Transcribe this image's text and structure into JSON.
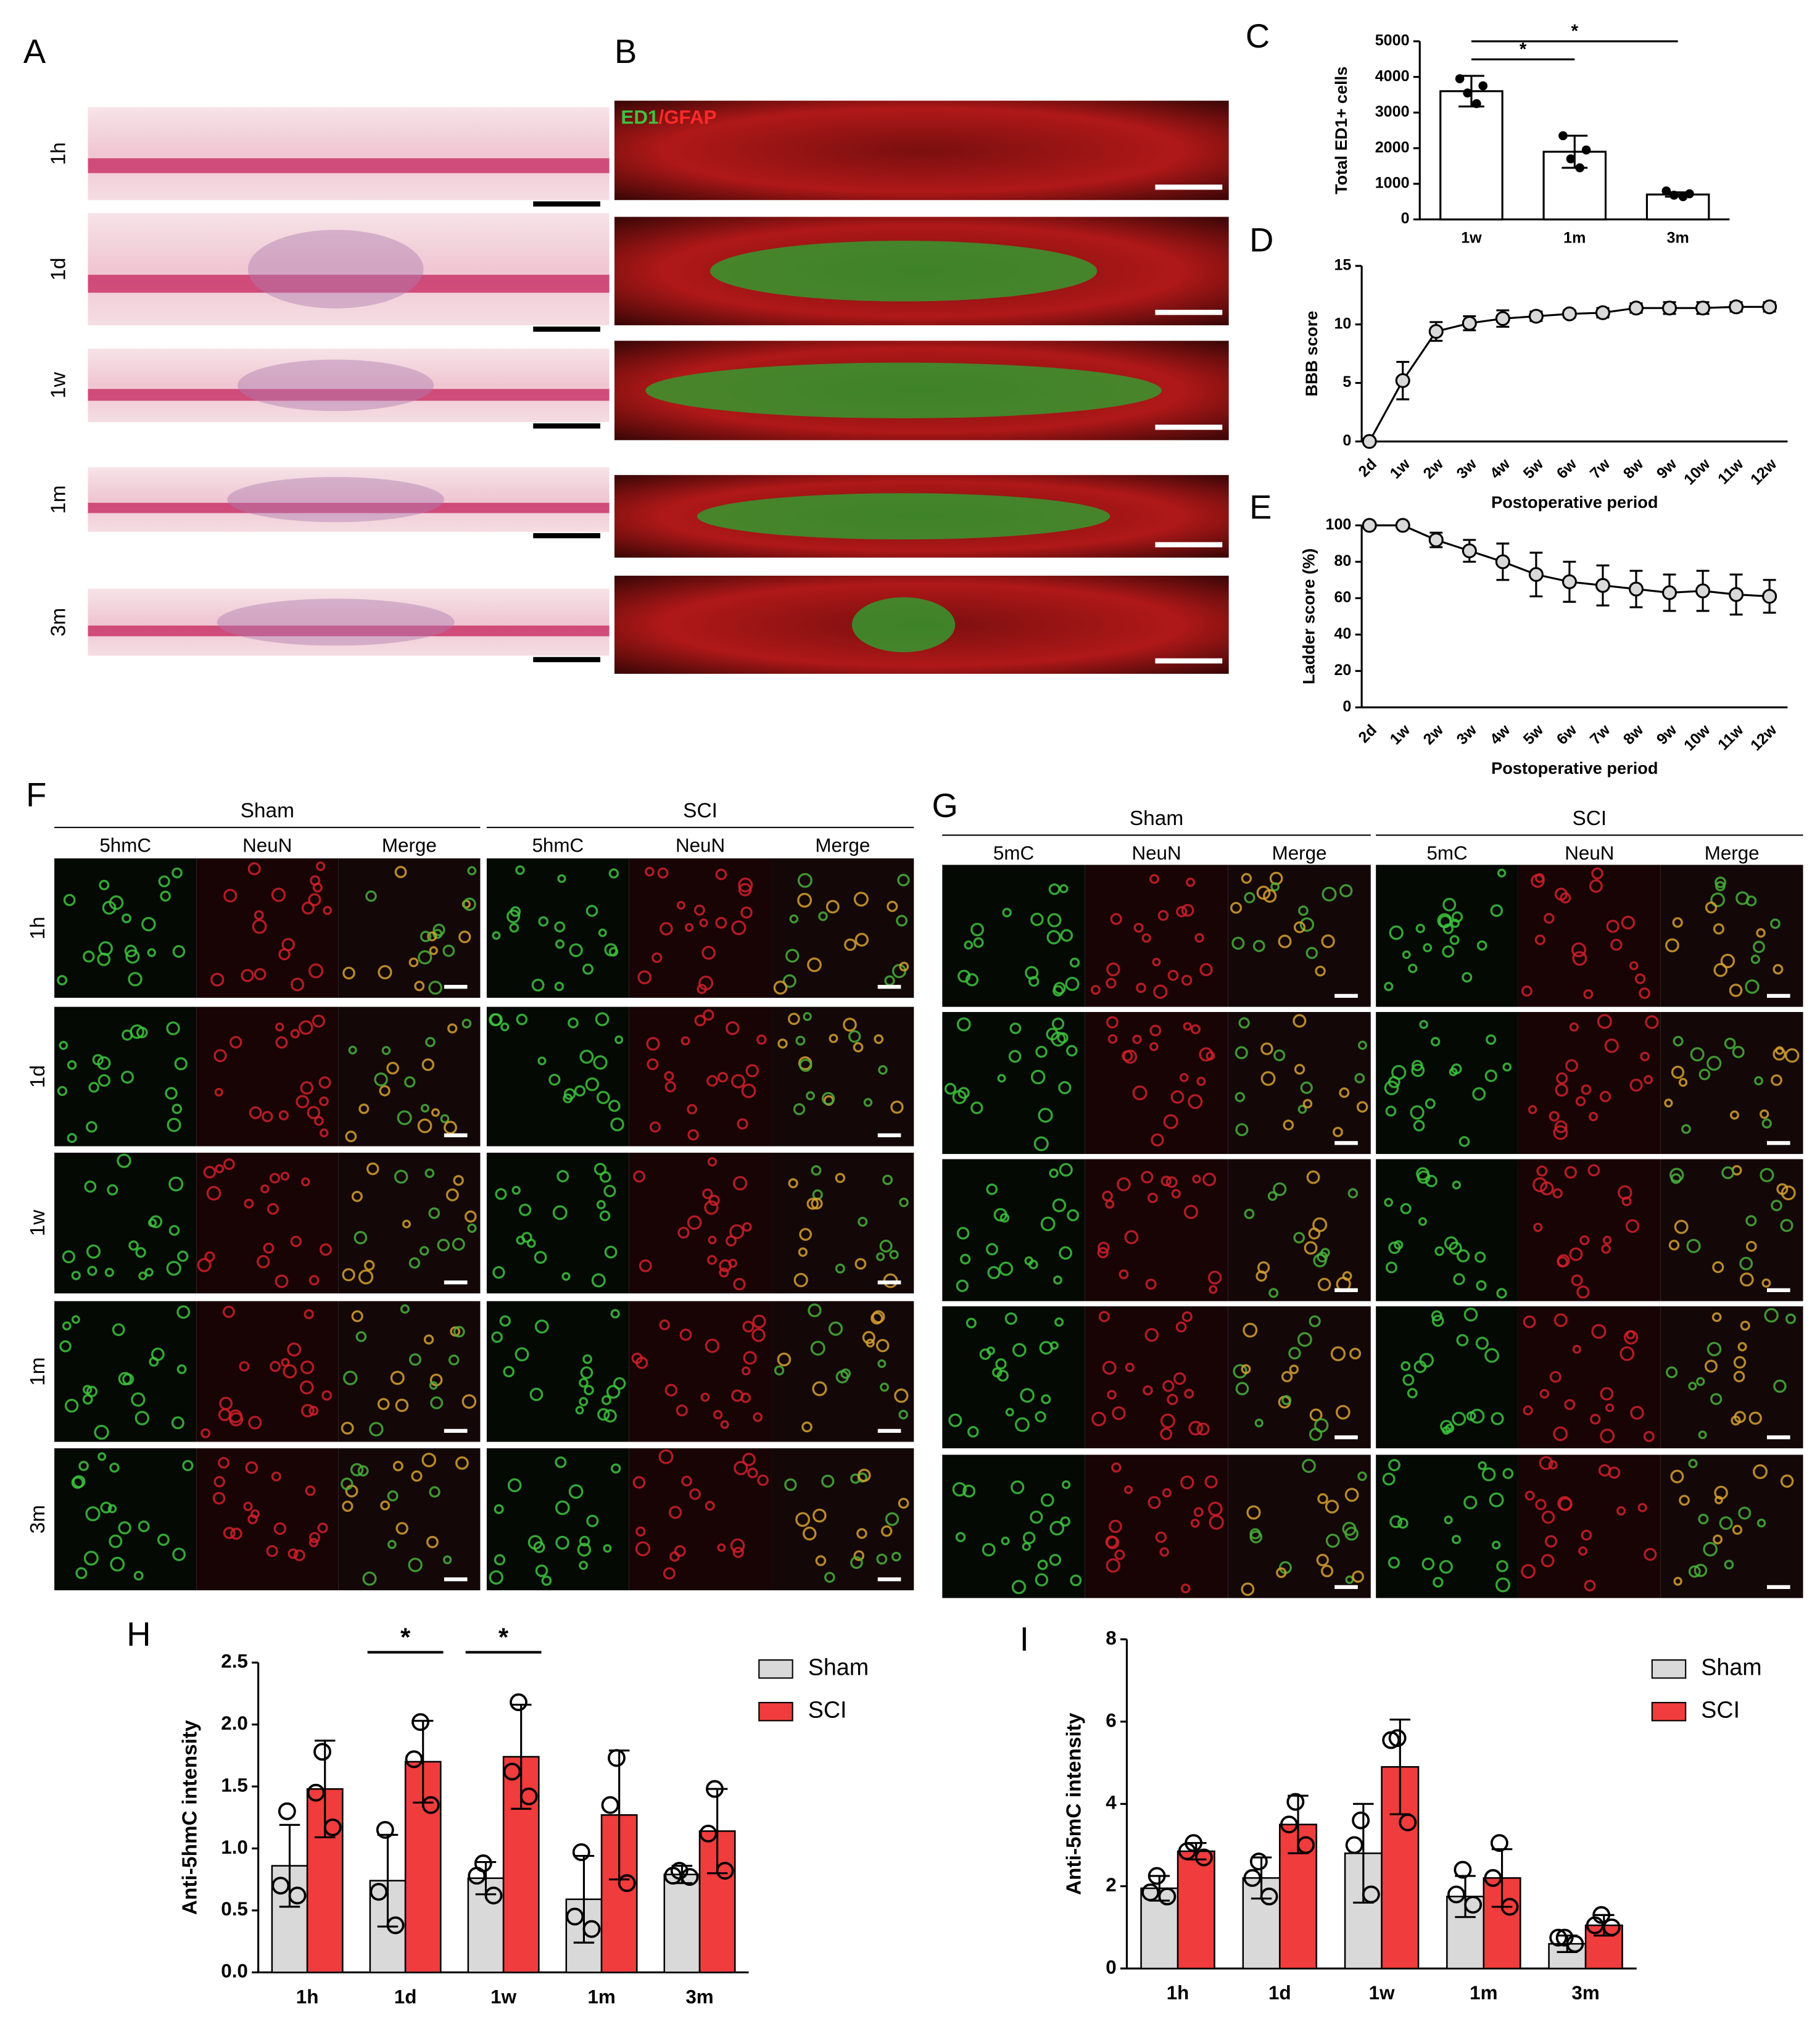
{
  "panels": {
    "A": {
      "letter": "A",
      "rows": [
        "1h",
        "1d",
        "1w",
        "1m",
        "3m"
      ]
    },
    "B": {
      "letter": "B",
      "stain_green": "ED1",
      "stain_red": "/GFAP"
    },
    "F": {
      "letter": "F",
      "groups": [
        "Sham",
        "SCI"
      ],
      "columns": [
        "5hmC",
        "NeuN",
        "Merge"
      ],
      "rows": [
        "1h",
        "1d",
        "1w",
        "1m",
        "3m"
      ]
    },
    "G": {
      "letter": "G",
      "groups": [
        "Sham",
        "SCI"
      ],
      "columns": [
        "5mC",
        "NeuN",
        "Merge"
      ]
    }
  },
  "chart_data": [
    {
      "type": "bar",
      "panel_label": "C",
      "ylabel": "Total ED1+ cells",
      "categories": [
        "1w",
        "1m",
        "3m"
      ],
      "values": [
        3600,
        1900,
        700
      ],
      "errors": [
        430,
        450,
        60
      ],
      "points": [
        [
          3950,
          3750,
          3550,
          3250
        ],
        [
          2350,
          1950,
          1700,
          1450
        ],
        [
          800,
          720,
          680,
          640
        ]
      ],
      "color": "#ffffff",
      "ylim": [
        0,
        5000
      ],
      "yticks": [
        0,
        1000,
        2000,
        3000,
        4000,
        5000
      ],
      "significance": [
        {
          "pair": [
            0,
            1
          ],
          "label": "*"
        },
        {
          "pair": [
            0,
            2
          ],
          "label": "*"
        }
      ]
    },
    {
      "type": "line",
      "panel_label": "D",
      "ylabel": "BBB score",
      "xlabel": "Postoperative period",
      "categories": [
        "2d",
        "1w",
        "2w",
        "3w",
        "4w",
        "5w",
        "6w",
        "7w",
        "8w",
        "9w",
        "10w",
        "11w",
        "12w"
      ],
      "values": [
        0,
        5.2,
        9.4,
        10.1,
        10.5,
        10.7,
        10.9,
        11.0,
        11.4,
        11.4,
        11.4,
        11.5,
        11.5
      ],
      "errors": [
        0,
        1.6,
        0.8,
        0.6,
        0.7,
        0.4,
        0.3,
        0.4,
        0.4,
        0.5,
        0.5,
        0.4,
        0.4
      ],
      "color": "#d9d9d9",
      "ylim": [
        0,
        15
      ],
      "yticks": [
        0,
        5,
        10,
        15
      ]
    },
    {
      "type": "line",
      "panel_label": "E",
      "ylabel": "Ladder score (%)",
      "xlabel": "Postoperative period",
      "categories": [
        "2d",
        "1w",
        "2w",
        "3w",
        "4w",
        "5w",
        "6w",
        "7w",
        "8w",
        "9w",
        "10w",
        "11w",
        "12w"
      ],
      "values": [
        100,
        100,
        92,
        86,
        80,
        73,
        69,
        67,
        65,
        63,
        64,
        62,
        61
      ],
      "errors": [
        0,
        0,
        4,
        6,
        10,
        12,
        11,
        11,
        10,
        10,
        11,
        11,
        9
      ],
      "color": "#d9d9d9",
      "ylim": [
        0,
        100
      ],
      "yticks": [
        0,
        20,
        40,
        60,
        80,
        100
      ]
    },
    {
      "type": "grouped_bar",
      "panel_label": "H",
      "ylabel": "Anti-5hmC intensity",
      "categories": [
        "1h",
        "1d",
        "1w",
        "1m",
        "3m"
      ],
      "series": [
        {
          "name": "Sham",
          "color": "#d9d9d9",
          "values": [
            0.86,
            0.74,
            0.76,
            0.59,
            0.79
          ],
          "errors": [
            0.33,
            0.37,
            0.13,
            0.35,
            0.07
          ],
          "points": [
            [
              1.3,
              0.7,
              0.62
            ],
            [
              1.15,
              0.65,
              0.38
            ],
            [
              0.88,
              0.78,
              0.62
            ],
            [
              0.97,
              0.45,
              0.35
            ],
            [
              0.82,
              0.78,
              0.77
            ]
          ]
        },
        {
          "name": "SCI",
          "color": "#f03c3c",
          "values": [
            1.48,
            1.7,
            1.74,
            1.27,
            1.14
          ],
          "errors": [
            0.39,
            0.33,
            0.42,
            0.52,
            0.34
          ],
          "points": [
            [
              1.78,
              1.45,
              1.17
            ],
            [
              2.02,
              1.72,
              1.35
            ],
            [
              2.18,
              1.62,
              1.42
            ],
            [
              1.73,
              1.35,
              0.72
            ],
            [
              1.48,
              1.12,
              0.82
            ]
          ]
        }
      ],
      "ylim": [
        0,
        2.5
      ],
      "yticks": [
        {
          "value": 0,
          "label": "0.0"
        },
        0.5,
        {
          "value": 1,
          "label": "1.0"
        },
        1.5,
        {
          "value": 2,
          "label": "2.0"
        },
        2.5
      ],
      "legend": "right",
      "significance": [
        {
          "category": 1,
          "label": "*"
        },
        {
          "category": 2,
          "label": "*"
        }
      ]
    },
    {
      "type": "grouped_bar",
      "panel_label": "I",
      "ylabel": "Anti-5mC intensity",
      "categories": [
        "1h",
        "1d",
        "1w",
        "1m",
        "3m"
      ],
      "series": [
        {
          "name": "Sham",
          "color": "#d9d9d9",
          "values": [
            1.95,
            2.2,
            2.8,
            1.75,
            0.6
          ],
          "errors": [
            0.3,
            0.5,
            1.2,
            0.5,
            0.2
          ],
          "points": [
            [
              2.25,
              1.85,
              1.75
            ],
            [
              2.6,
              2.2,
              1.75
            ],
            [
              3.6,
              3.0,
              1.8
            ],
            [
              2.4,
              1.8,
              1.55
            ],
            [
              0.75,
              0.75,
              0.6
            ]
          ]
        },
        {
          "name": "SCI",
          "color": "#f03c3c",
          "values": [
            2.85,
            3.5,
            4.9,
            2.2,
            1.05
          ],
          "errors": [
            0.2,
            0.7,
            1.15,
            0.7,
            0.25
          ],
          "points": [
            [
              3.05,
              2.85,
              2.7
            ],
            [
              4.05,
              3.5,
              3.0
            ],
            [
              5.6,
              5.55,
              3.55
            ],
            [
              3.05,
              2.2,
              1.5
            ],
            [
              1.3,
              1.05,
              1.0
            ]
          ]
        }
      ],
      "ylim": [
        0,
        8
      ],
      "yticks": [
        0,
        2,
        4,
        6,
        8
      ],
      "legend": "right"
    }
  ]
}
